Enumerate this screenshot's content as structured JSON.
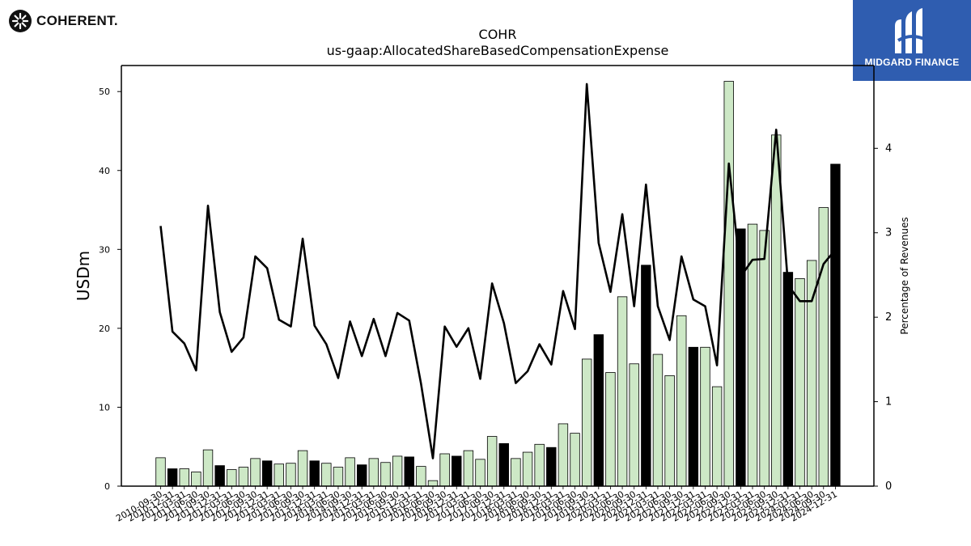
{
  "branding": {
    "left_logo": "COHERENT.",
    "right_logo": "MIDGARD FINANCE"
  },
  "colors": {
    "bar_light": "#cde8c6",
    "bar_dark": "#000000",
    "line": "#000000",
    "logo_right_bg": "#2f5db0"
  },
  "chart_data": {
    "type": "bar",
    "title": "COHR",
    "subtitle": "us-gaap:AllocatedShareBasedCompensationExpense",
    "ylabel": "USDm",
    "y2label": "Percentage of Revenues",
    "ylim": [
      0,
      53.3
    ],
    "y2lim": [
      0,
      4.98
    ],
    "yticks": [
      0,
      10,
      20,
      30,
      40,
      50
    ],
    "y2ticks": [
      0,
      1,
      2,
      3,
      4
    ],
    "grid": false,
    "categories": [
      "2010-09-30",
      "2010-12-31",
      "2011-03-31",
      "2011-06-30",
      "2011-09-30",
      "2011-12-31",
      "2012-03-31",
      "2012-06-30",
      "2012-09-30",
      "2012-12-31",
      "2013-03-31",
      "2013-06-30",
      "2013-09-30",
      "2013-12-31",
      "2014-03-31",
      "2014-06-30",
      "2014-09-30",
      "2014-12-31",
      "2015-03-31",
      "2015-06-30",
      "2015-09-30",
      "2015-12-31",
      "2016-03-31",
      "2016-06-30",
      "2016-09-30",
      "2016-12-31",
      "2017-03-31",
      "2017-06-30",
      "2017-09-30",
      "2017-12-31",
      "2018-03-31",
      "2018-06-30",
      "2018-09-30",
      "2018-12-31",
      "2019-03-31",
      "2019-06-30",
      "2019-09-30",
      "2019-12-31",
      "2020-03-31",
      "2020-06-30",
      "2020-09-30",
      "2020-12-31",
      "2021-03-31",
      "2021-06-30",
      "2021-09-30",
      "2021-12-31",
      "2022-03-31",
      "2022-06-30",
      "2022-09-30",
      "2022-12-31",
      "2023-03-31",
      "2023-06-30",
      "2023-09-30",
      "2023-12-31",
      "2024-03-31",
      "2024-06-30",
      "2024-09-30",
      "2024-12-31"
    ],
    "series": [
      {
        "type": "bar",
        "values": [
          3.6,
          2.2,
          2.2,
          1.8,
          4.6,
          2.6,
          2.1,
          2.4,
          3.5,
          3.2,
          2.8,
          2.9,
          4.5,
          3.2,
          2.9,
          2.4,
          3.6,
          2.7,
          3.5,
          3.0,
          3.8,
          3.7,
          2.5,
          0.7,
          4.1,
          3.8,
          4.5,
          3.4,
          6.3,
          5.4,
          3.5,
          4.3,
          5.3,
          4.9,
          7.9,
          6.7,
          16.1,
          19.2,
          14.4,
          24.0,
          15.5,
          28.0,
          16.7,
          14.0,
          21.6,
          17.6,
          17.6,
          12.6,
          51.3,
          32.6,
          33.2,
          32.4,
          44.5,
          27.1,
          26.3,
          28.6,
          35.3,
          40.8
        ],
        "dark": [
          false,
          true,
          false,
          false,
          false,
          true,
          false,
          false,
          false,
          true,
          false,
          false,
          false,
          true,
          false,
          false,
          false,
          true,
          false,
          false,
          false,
          true,
          false,
          false,
          false,
          true,
          false,
          false,
          false,
          true,
          false,
          false,
          false,
          true,
          false,
          false,
          false,
          true,
          false,
          false,
          false,
          true,
          false,
          false,
          false,
          true,
          false,
          false,
          false,
          true,
          false,
          false,
          false,
          true,
          false,
          false,
          false,
          true
        ]
      },
      {
        "type": "line",
        "axis": "right",
        "values": [
          3.08,
          1.83,
          1.69,
          1.37,
          3.32,
          2.06,
          1.59,
          1.76,
          2.72,
          2.58,
          1.97,
          1.89,
          2.93,
          1.9,
          1.68,
          1.28,
          1.95,
          1.54,
          1.98,
          1.54,
          2.05,
          1.96,
          1.21,
          0.33,
          1.89,
          1.65,
          1.87,
          1.27,
          2.4,
          1.93,
          1.22,
          1.36,
          1.68,
          1.44,
          2.31,
          1.86,
          4.76,
          2.88,
          2.3,
          3.22,
          2.13,
          3.57,
          2.13,
          1.73,
          2.72,
          2.21,
          2.13,
          1.43,
          3.82,
          2.48,
          2.68,
          2.69,
          4.22,
          2.38,
          2.19,
          2.19,
          2.63,
          2.8
        ]
      }
    ]
  }
}
